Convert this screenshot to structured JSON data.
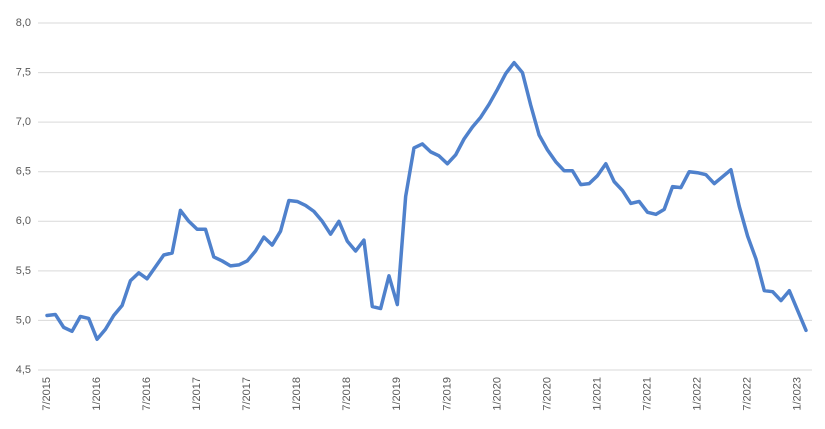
{
  "chart_data": {
    "type": "line",
    "categories": [
      "7/2015",
      null,
      null,
      null,
      null,
      null,
      "1/2016",
      null,
      null,
      null,
      null,
      null,
      "7/2016",
      null,
      null,
      null,
      null,
      null,
      "1/2017",
      null,
      null,
      null,
      null,
      null,
      "7/2017",
      null,
      null,
      null,
      null,
      null,
      "1/2018",
      null,
      null,
      null,
      null,
      null,
      "7/2018",
      null,
      null,
      null,
      null,
      null,
      "1/2019",
      null,
      null,
      null,
      null,
      null,
      "7/2019",
      null,
      null,
      null,
      null,
      null,
      "1/2020",
      null,
      null,
      null,
      null,
      null,
      "7/2020",
      null,
      null,
      null,
      null,
      null,
      "1/2021",
      null,
      null,
      null,
      null,
      null,
      "7/2021",
      null,
      null,
      null,
      null,
      null,
      "1/2022",
      null,
      null,
      null,
      null,
      null,
      "7/2022",
      null,
      null,
      null,
      null,
      null,
      "1/2023",
      null
    ],
    "series": [
      {
        "color": "#4f81cc",
        "values": [
          5.05,
          5.06,
          4.93,
          4.89,
          5.04,
          5.02,
          4.81,
          4.91,
          5.05,
          5.15,
          5.4,
          5.48,
          5.42,
          5.54,
          5.66,
          5.68,
          6.11,
          6.0,
          5.92,
          5.92,
          5.64,
          5.6,
          5.55,
          5.56,
          5.6,
          5.7,
          5.84,
          5.76,
          5.9,
          6.21,
          6.2,
          6.16,
          6.1,
          6.0,
          5.87,
          6.0,
          5.8,
          5.7,
          5.81,
          5.14,
          5.12,
          5.45,
          5.16,
          6.25,
          6.74,
          6.78,
          6.7,
          6.66,
          6.58,
          6.67,
          6.83,
          6.95,
          7.05,
          7.18,
          7.33,
          7.49,
          7.6,
          7.5,
          7.17,
          6.87,
          6.72,
          6.6,
          6.51,
          6.51,
          6.37,
          6.38,
          6.46,
          6.58,
          6.4,
          6.31,
          6.18,
          6.2,
          6.09,
          6.07,
          6.12,
          6.35,
          6.34,
          6.5,
          6.49,
          6.47,
          6.38,
          6.45,
          6.52,
          6.15,
          5.85,
          5.62,
          5.3,
          5.29,
          5.2,
          5.3,
          5.1,
          4.9
        ]
      }
    ],
    "ylim": [
      4.5,
      8.0
    ],
    "yticks": [
      {
        "value": 4.5,
        "label": "4,5"
      },
      {
        "value": 5,
        "label": "5,0"
      },
      {
        "value": 5.5,
        "label": "5,5"
      },
      {
        "value": 6,
        "label": "6,0"
      },
      {
        "value": 6.5,
        "label": "6,5"
      },
      {
        "value": 7,
        "label": "7,0"
      },
      {
        "value": 7.5,
        "label": "7,5"
      },
      {
        "value": 8,
        "label": "8,0"
      }
    ],
    "grid": true
  }
}
